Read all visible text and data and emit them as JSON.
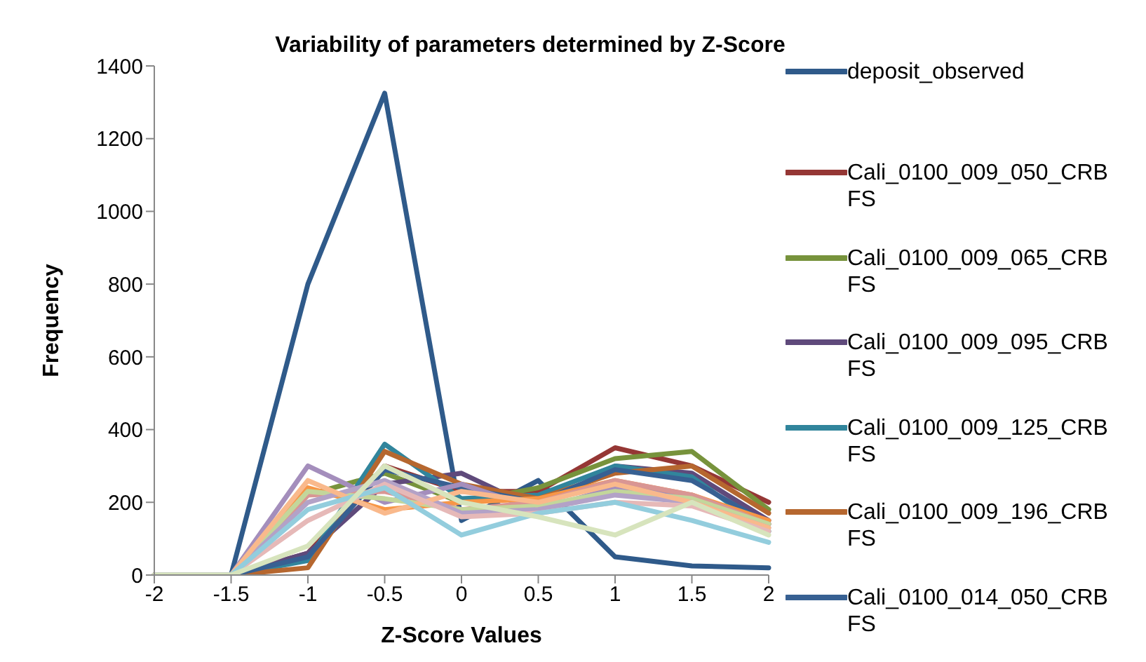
{
  "chart_data": {
    "type": "line",
    "title": "Variability of parameters determined by Z-Score",
    "xlabel": "Z-Score Values",
    "ylabel": "Frequency",
    "categories": [
      "-2",
      "-1.5",
      "-1",
      "-0.5",
      "0",
      "0.5",
      "1",
      "1.5",
      "2"
    ],
    "ylim": [
      0,
      1400
    ],
    "yticks": [
      0,
      200,
      400,
      600,
      800,
      1000,
      1200,
      1400
    ],
    "grid": false,
    "legend": "right",
    "marker": "none",
    "line_style": "solid",
    "series": [
      {
        "name": "deposit_observed",
        "color": "#2f5a8a",
        "values": [
          0,
          0,
          800,
          1325,
          150,
          260,
          50,
          25,
          20
        ]
      },
      {
        "name": "Cali_0100_009_050_CRBFS",
        "color": "#953735",
        "values": [
          0,
          0,
          60,
          300,
          230,
          230,
          350,
          300,
          200
        ]
      },
      {
        "name": "Cali_0100_009_065_CRBFS",
        "color": "#77933c",
        "values": [
          0,
          0,
          220,
          280,
          200,
          240,
          320,
          340,
          180
        ]
      },
      {
        "name": "Cali_0100_009_095_CRBFS",
        "color": "#5f4a7b",
        "values": [
          0,
          0,
          60,
          250,
          280,
          180,
          300,
          280,
          150
        ]
      },
      {
        "name": "Cali_0100_009_125_CRBFS",
        "color": "#31859c",
        "values": [
          0,
          0,
          40,
          360,
          210,
          220,
          300,
          270,
          120
        ]
      },
      {
        "name": "Cali_0100_009_196_CRBFS",
        "color": "#b6672f",
        "values": [
          0,
          0,
          20,
          340,
          250,
          210,
          280,
          300,
          170
        ]
      },
      {
        "name": "Cali_0100_014_050_CRBFS",
        "color": "#376092",
        "values": [
          0,
          0,
          50,
          290,
          240,
          200,
          290,
          260,
          140
        ]
      },
      {
        "color": "#a48ebc",
        "values": [
          0,
          0,
          300,
          200,
          250,
          180,
          240,
          220,
          140
        ]
      },
      {
        "color": "#f79646",
        "values": [
          0,
          0,
          240,
          180,
          200,
          210,
          260,
          220,
          150
        ]
      },
      {
        "color": "#d99694",
        "values": [
          0,
          0,
          220,
          230,
          180,
          200,
          260,
          220,
          140
        ]
      },
      {
        "color": "#c3d69b",
        "values": [
          0,
          0,
          230,
          210,
          180,
          190,
          230,
          210,
          140
        ]
      },
      {
        "color": "#b3a2c7",
        "values": [
          0,
          0,
          200,
          260,
          170,
          180,
          220,
          200,
          130
        ]
      },
      {
        "color": "#f9b98c",
        "values": [
          0,
          0,
          260,
          170,
          230,
          200,
          250,
          200,
          130
        ]
      },
      {
        "color": "#e6b9b8",
        "values": [
          0,
          0,
          150,
          250,
          160,
          170,
          200,
          190,
          120
        ]
      },
      {
        "color": "#93cddd",
        "values": [
          0,
          0,
          180,
          240,
          110,
          170,
          200,
          150,
          90
        ]
      },
      {
        "color": "#d7e4bd",
        "values": [
          0,
          0,
          80,
          300,
          200,
          160,
          110,
          200,
          110
        ]
      }
    ]
  }
}
